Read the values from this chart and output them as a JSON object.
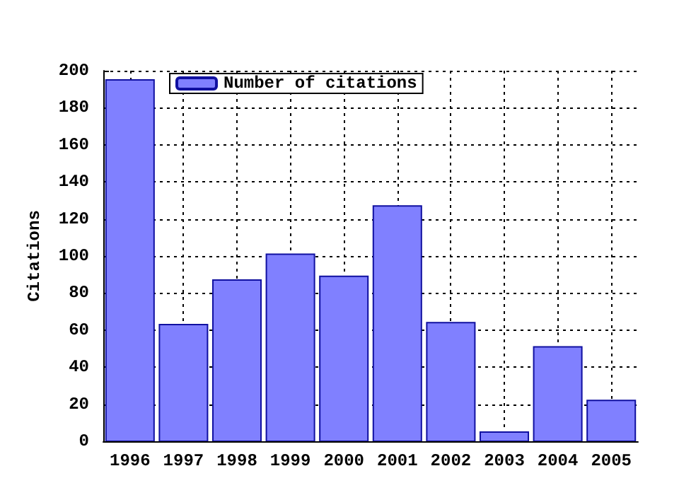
{
  "chart_data": {
    "type": "bar",
    "ylabel": "Citations",
    "x": [
      1996,
      1997,
      1998,
      1999,
      2000,
      2001,
      2002,
      2003,
      2004,
      2005
    ],
    "series": [
      {
        "name": "Number of citations",
        "color": "#8080ff",
        "values": [
          195,
          63,
          87,
          101,
          89,
          127,
          64,
          5,
          51,
          22
        ]
      }
    ],
    "xlim": [
      1995.5,
      2005.5
    ],
    "xticks": [
      1996,
      1997,
      1998,
      1999,
      2000,
      2001,
      2002,
      2003,
      2004,
      2005
    ],
    "ylim": [
      0,
      200
    ],
    "yticks": [
      0,
      20,
      40,
      60,
      80,
      100,
      120,
      140,
      160,
      180,
      200
    ],
    "grid": true,
    "legend": "top left"
  }
}
